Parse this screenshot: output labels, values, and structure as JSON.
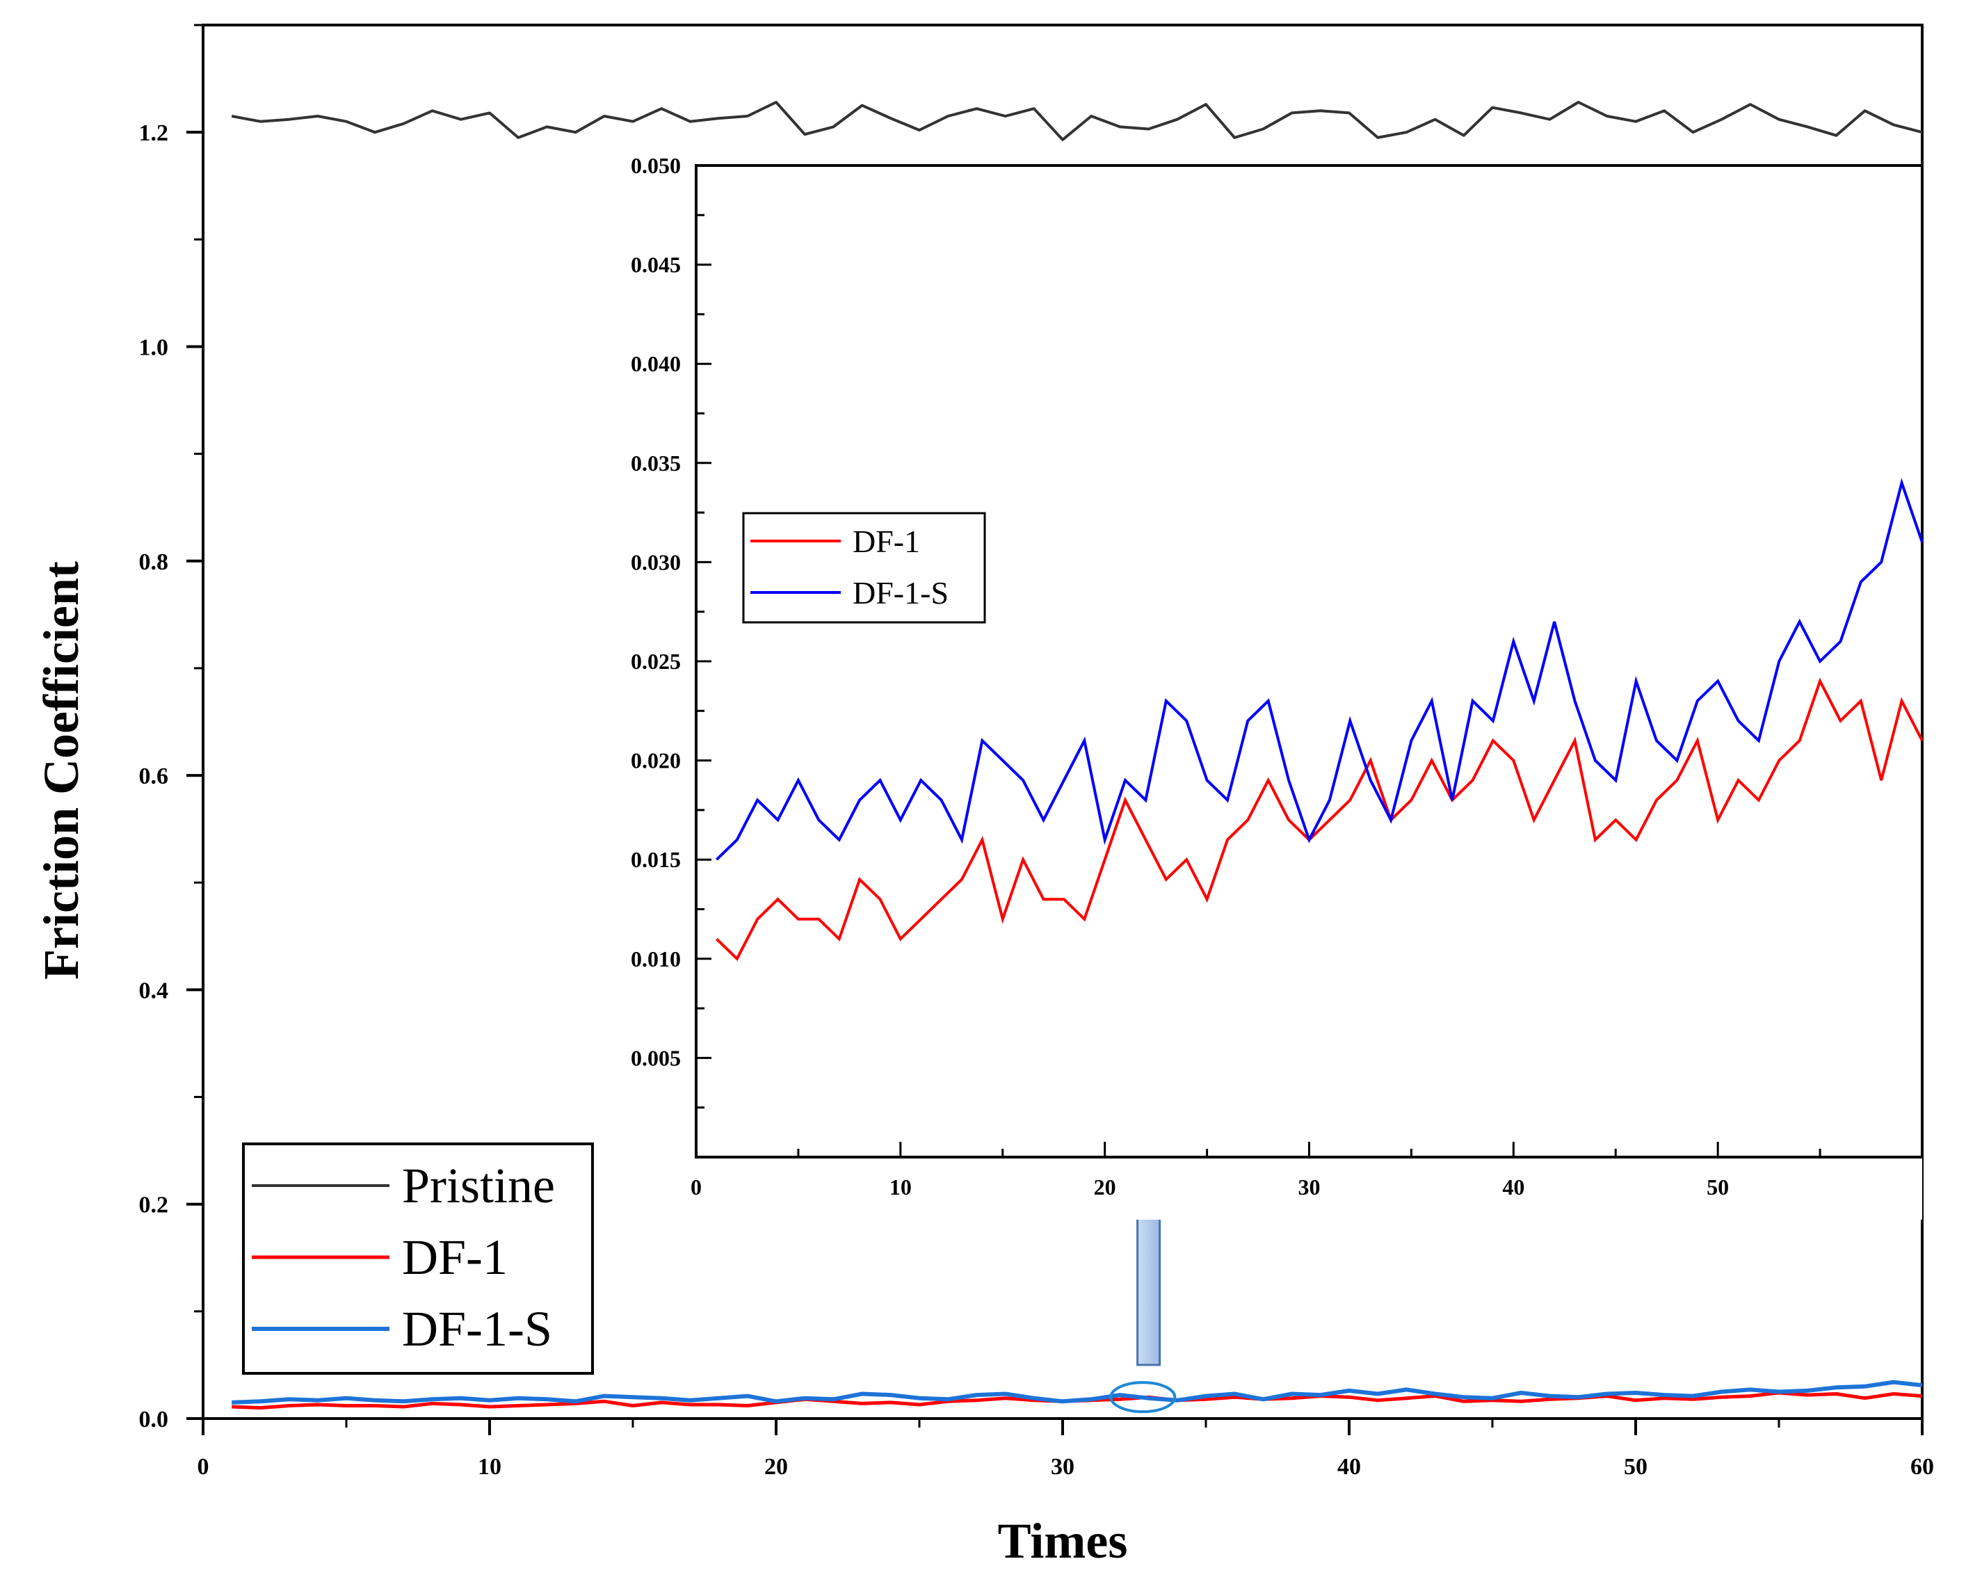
{
  "chart_data": [
    {
      "id": "main",
      "type": "line",
      "title": "",
      "xlabel": "Times",
      "ylabel": "Friction Coefficient",
      "xlim": [
        0,
        60
      ],
      "ylim": [
        0,
        1.3
      ],
      "xticks": [
        0,
        10,
        20,
        30,
        40,
        50,
        60
      ],
      "xtick_labels": [
        "0",
        "10",
        "20",
        "30",
        "40",
        "50",
        "60"
      ],
      "yticks": [
        0.0,
        0.2,
        0.4,
        0.6,
        0.8,
        1.0,
        1.2
      ],
      "ytick_labels": [
        "0.0",
        "0.2",
        "0.4",
        "0.6",
        "0.8",
        "1.0",
        "1.2"
      ],
      "legend": {
        "placement": "bottom-left",
        "entries": [
          "Pristine",
          "DF-1",
          "DF-1-S"
        ]
      },
      "series": [
        {
          "name": "Pristine",
          "color": "#333333",
          "x": [
            1,
            2,
            3,
            4,
            5,
            6,
            7,
            8,
            9,
            10,
            11,
            12,
            13,
            14,
            15,
            16,
            17,
            18,
            19,
            20,
            21,
            22,
            23,
            24,
            25,
            26,
            27,
            28,
            29,
            30,
            31,
            32,
            33,
            34,
            35,
            36,
            37,
            38,
            39,
            40,
            41,
            42,
            43,
            44,
            45,
            46,
            47,
            48,
            49,
            50,
            51,
            52,
            53,
            54,
            55,
            56,
            57,
            58,
            59,
            60
          ],
          "values": [
            1.215,
            1.21,
            1.212,
            1.215,
            1.21,
            1.2,
            1.208,
            1.22,
            1.212,
            1.218,
            1.195,
            1.205,
            1.2,
            1.215,
            1.21,
            1.222,
            1.21,
            1.213,
            1.215,
            1.228,
            1.198,
            1.205,
            1.225,
            1.213,
            1.202,
            1.215,
            1.222,
            1.215,
            1.222,
            1.193,
            1.215,
            1.205,
            1.203,
            1.212,
            1.226,
            1.195,
            1.203,
            1.218,
            1.22,
            1.218,
            1.195,
            1.2,
            1.212,
            1.197,
            1.223,
            1.218,
            1.212,
            1.228,
            1.215,
            1.21,
            1.22,
            1.2,
            1.212,
            1.226,
            1.212,
            1.205,
            1.197,
            1.22,
            1.207,
            1.2
          ]
        },
        {
          "name": "DF-1",
          "color": "#ff0000",
          "x": [
            1,
            2,
            3,
            4,
            5,
            6,
            7,
            8,
            9,
            10,
            11,
            12,
            13,
            14,
            15,
            16,
            17,
            18,
            19,
            20,
            21,
            22,
            23,
            24,
            25,
            26,
            27,
            28,
            29,
            30,
            31,
            32,
            33,
            34,
            35,
            36,
            37,
            38,
            39,
            40,
            41,
            42,
            43,
            44,
            45,
            46,
            47,
            48,
            49,
            50,
            51,
            52,
            53,
            54,
            55,
            56,
            57,
            58,
            59,
            60
          ],
          "values": [
            0.011,
            0.01,
            0.012,
            0.013,
            0.012,
            0.012,
            0.011,
            0.014,
            0.013,
            0.011,
            0.012,
            0.013,
            0.014,
            0.016,
            0.012,
            0.015,
            0.013,
            0.013,
            0.012,
            0.015,
            0.018,
            0.016,
            0.014,
            0.015,
            0.013,
            0.016,
            0.017,
            0.019,
            0.017,
            0.016,
            0.017,
            0.018,
            0.02,
            0.017,
            0.018,
            0.02,
            0.018,
            0.019,
            0.021,
            0.02,
            0.017,
            0.019,
            0.021,
            0.016,
            0.017,
            0.016,
            0.018,
            0.019,
            0.021,
            0.017,
            0.019,
            0.018,
            0.02,
            0.021,
            0.024,
            0.022,
            0.023,
            0.019,
            0.023,
            0.021
          ]
        },
        {
          "name": "DF-1-S",
          "color": "#1e73d8",
          "x": [
            1,
            2,
            3,
            4,
            5,
            6,
            7,
            8,
            9,
            10,
            11,
            12,
            13,
            14,
            15,
            16,
            17,
            18,
            19,
            20,
            21,
            22,
            23,
            24,
            25,
            26,
            27,
            28,
            29,
            30,
            31,
            32,
            33,
            34,
            35,
            36,
            37,
            38,
            39,
            40,
            41,
            42,
            43,
            44,
            45,
            46,
            47,
            48,
            49,
            50,
            51,
            52,
            53,
            54,
            55,
            56,
            57,
            58,
            59,
            60
          ],
          "values": [
            0.015,
            0.016,
            0.018,
            0.017,
            0.019,
            0.017,
            0.016,
            0.018,
            0.019,
            0.017,
            0.019,
            0.018,
            0.016,
            0.021,
            0.02,
            0.019,
            0.017,
            0.019,
            0.021,
            0.016,
            0.019,
            0.018,
            0.023,
            0.022,
            0.019,
            0.018,
            0.022,
            0.023,
            0.019,
            0.016,
            0.018,
            0.022,
            0.019,
            0.017,
            0.021,
            0.023,
            0.018,
            0.023,
            0.022,
            0.026,
            0.023,
            0.027,
            0.023,
            0.02,
            0.019,
            0.024,
            0.021,
            0.02,
            0.023,
            0.024,
            0.022,
            0.021,
            0.025,
            0.027,
            0.025,
            0.026,
            0.029,
            0.03,
            0.034,
            0.031
          ]
        }
      ],
      "annotations": [
        {
          "type": "ellipse",
          "label": "zoom region",
          "x": 32.8,
          "y": 0.02
        },
        {
          "type": "arrow",
          "label": "up arrow to inset",
          "from_x": 33,
          "from_y": 0.05,
          "to_x": 33,
          "to_y": 0.21
        }
      ]
    },
    {
      "id": "inset",
      "type": "line",
      "title": "",
      "xlabel": "",
      "ylabel": "",
      "xlim": [
        0,
        60
      ],
      "ylim": [
        0,
        0.05
      ],
      "xticks": [
        0,
        10,
        20,
        30,
        40,
        50
      ],
      "xtick_labels": [
        "0",
        "10",
        "20",
        "30",
        "40",
        "50"
      ],
      "yticks": [
        0.005,
        0.01,
        0.015,
        0.02,
        0.025,
        0.03,
        0.035,
        0.04,
        0.045,
        0.05
      ],
      "ytick_labels": [
        "0.005",
        "0.010",
        "0.015",
        "0.020",
        "0.025",
        "0.030",
        "0.035",
        "0.040",
        "0.045",
        "0.050"
      ],
      "legend": {
        "placement": "left",
        "entries": [
          "DF-1",
          "DF-1-S"
        ]
      },
      "series": [
        {
          "name": "DF-1",
          "color": "#ff0000",
          "x": [
            1,
            2,
            3,
            4,
            5,
            6,
            7,
            8,
            9,
            10,
            11,
            12,
            13,
            14,
            15,
            16,
            17,
            18,
            19,
            20,
            21,
            22,
            23,
            24,
            25,
            26,
            27,
            28,
            29,
            30,
            31,
            32,
            33,
            34,
            35,
            36,
            37,
            38,
            39,
            40,
            41,
            42,
            43,
            44,
            45,
            46,
            47,
            48,
            49,
            50,
            51,
            52,
            53,
            54,
            55,
            56,
            57,
            58,
            59,
            60
          ],
          "values": [
            0.011,
            0.01,
            0.012,
            0.013,
            0.012,
            0.012,
            0.011,
            0.014,
            0.013,
            0.011,
            0.012,
            0.013,
            0.014,
            0.016,
            0.012,
            0.015,
            0.013,
            0.013,
            0.012,
            0.015,
            0.018,
            0.016,
            0.014,
            0.015,
            0.013,
            0.016,
            0.017,
            0.019,
            0.017,
            0.016,
            0.017,
            0.018,
            0.02,
            0.017,
            0.018,
            0.02,
            0.018,
            0.019,
            0.021,
            0.02,
            0.017,
            0.019,
            0.021,
            0.016,
            0.017,
            0.016,
            0.018,
            0.019,
            0.021,
            0.017,
            0.019,
            0.018,
            0.02,
            0.021,
            0.024,
            0.022,
            0.023,
            0.019,
            0.023,
            0.021
          ]
        },
        {
          "name": "DF-1-S",
          "color": "#0000ff",
          "x": [
            1,
            2,
            3,
            4,
            5,
            6,
            7,
            8,
            9,
            10,
            11,
            12,
            13,
            14,
            15,
            16,
            17,
            18,
            19,
            20,
            21,
            22,
            23,
            24,
            25,
            26,
            27,
            28,
            29,
            30,
            31,
            32,
            33,
            34,
            35,
            36,
            37,
            38,
            39,
            40,
            41,
            42,
            43,
            44,
            45,
            46,
            47,
            48,
            49,
            50,
            51,
            52,
            53,
            54,
            55,
            56,
            57,
            58,
            59,
            60
          ],
          "values": [
            0.015,
            0.016,
            0.018,
            0.017,
            0.019,
            0.017,
            0.016,
            0.018,
            0.019,
            0.017,
            0.019,
            0.018,
            0.016,
            0.021,
            0.02,
            0.019,
            0.017,
            0.019,
            0.021,
            0.016,
            0.019,
            0.018,
            0.023,
            0.022,
            0.019,
            0.018,
            0.022,
            0.023,
            0.019,
            0.016,
            0.018,
            0.022,
            0.019,
            0.017,
            0.021,
            0.023,
            0.018,
            0.023,
            0.022,
            0.026,
            0.023,
            0.027,
            0.023,
            0.02,
            0.019,
            0.024,
            0.021,
            0.02,
            0.023,
            0.024,
            0.022,
            0.021,
            0.025,
            0.027,
            0.025,
            0.026,
            0.029,
            0.03,
            0.034,
            0.031
          ]
        }
      ]
    }
  ]
}
